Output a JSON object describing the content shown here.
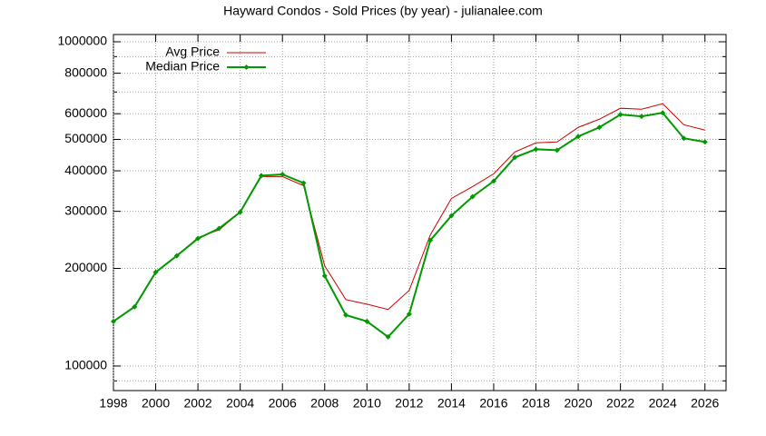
{
  "chart_data": {
    "type": "line",
    "title": "Hayward Condos - Sold Prices (by year) - julianalee.com",
    "x": [
      1998,
      1999,
      2000,
      2001,
      2002,
      2003,
      2004,
      2005,
      2006,
      2007,
      2008,
      2009,
      2010,
      2011,
      2012,
      2013,
      2014,
      2015,
      2016,
      2017,
      2018,
      2019,
      2020,
      2021,
      2022,
      2023,
      2024,
      2025,
      2026
    ],
    "series": [
      {
        "name": "Avg Price",
        "color": "#cc0000",
        "values": [
          137300,
          152300,
          194700,
          218800,
          249000,
          263000,
          298400,
          384000,
          384000,
          360000,
          203700,
          160300,
          155200,
          149400,
          171100,
          253800,
          328800,
          357600,
          391500,
          457200,
          487900,
          491000,
          544500,
          577000,
          623700,
          619500,
          644200,
          554900,
          534000
        ]
      },
      {
        "name": "Median Price",
        "color": "#009900",
        "marker": "diamond",
        "values": [
          137300,
          152300,
          194700,
          218800,
          247400,
          265600,
          298400,
          386500,
          390000,
          366900,
          189700,
          143600,
          137300,
          123000,
          144600,
          244100,
          290800,
          333000,
          371700,
          440000,
          466200,
          463200,
          510500,
          544500,
          596300,
          588600,
          603900,
          503900,
          491000
        ]
      }
    ],
    "xlim": [
      1998,
      2027
    ],
    "xticks": [
      1998,
      2000,
      2002,
      2004,
      2006,
      2008,
      2010,
      2012,
      2014,
      2016,
      2018,
      2020,
      2022,
      2024,
      2026
    ],
    "ylim": [
      84000,
      1053000
    ],
    "ylog": true,
    "yticks": [
      100000,
      200000,
      300000,
      400000,
      500000,
      600000,
      800000,
      1000000
    ],
    "yminorticks": [
      90000,
      700000,
      900000
    ],
    "grid": true,
    "legend": "top-left"
  }
}
